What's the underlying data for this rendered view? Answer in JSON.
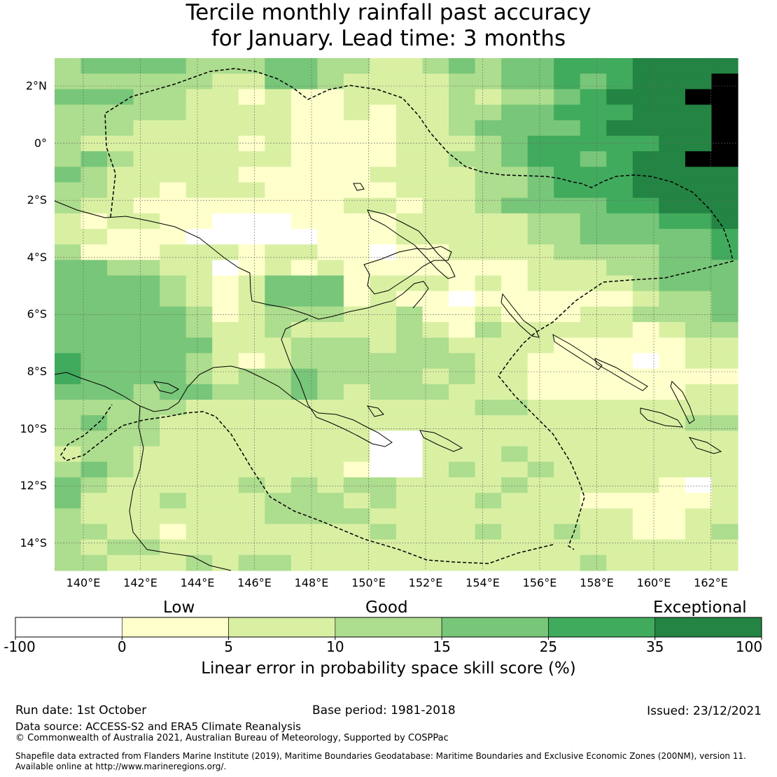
{
  "title_line_1": "Tercile monthly rainfall past accuracy",
  "title_line_2": "for January. Lead time: 3 months",
  "lat_labels": [
    "2°N",
    "0°",
    "2°S",
    "4°S",
    "6°S",
    "8°S",
    "10°S",
    "12°S",
    "14°S"
  ],
  "lon_labels": [
    "140°E",
    "142°E",
    "144°E",
    "146°E",
    "148°E",
    "150°E",
    "152°E",
    "154°E",
    "156°E",
    "158°E",
    "160°E",
    "162°E"
  ],
  "legend": {
    "categories": [
      "Low",
      "Good",
      "Exceptional"
    ],
    "ticks": [
      "-100",
      "0",
      "5",
      "10",
      "15",
      "25",
      "35",
      "100"
    ],
    "colors": [
      "#ffffff",
      "#ffffcc",
      "#d9f0a3",
      "#addd8e",
      "#78c679",
      "#41ab5d",
      "#238443"
    ],
    "caption": "Linear error in probability space skill score (%)"
  },
  "footer": {
    "run_date": "Run date: 1st October",
    "base_period": "Base period: 1981-2018",
    "issued": "Issued: 23/12/2021",
    "data_source": "Data source: ACCESS-S2 and ERA5 Climate Reanalysis",
    "copyright": "© Commonwealth of Australia 2021, Australian Bureau of Meteorology, Supported by COSPPac",
    "shapefile_line_1": "Shapefile data extracted from Flanders Marine Institute (2019), Maritime Boundaries Geodatabase: Maritime Boundaries and Exclusive Economic Zones (200NM), version 11.",
    "shapefile_line_2": "Available online at http://www.marineregions.org/."
  },
  "skill_grid": [
    "34444333443322343445556666",
    "33333322443222233445456667",
    "44433221211222232334566677",
    "33333222211212233445556667",
    "33322222211112234444566667",
    "32222221211112223455555667",
    "34322222211112233455456677",
    "43222221111122223345556666",
    "33221222111112223345556666",
    "32211111111221223444455666",
    "21221100011112222233444556",
    "22111000001112222233444445",
    "31112221221101122223333445",
    "44332201212111111122233444",
    "44443212444122212122223444",
    "44443212444121101111112334",
    "44444312333223112111223334",
    "44444322322223213222221233",
    "44444422233323322221111122",
    "54444321233333332211110122",
    "54444323343333232211111111",
    "44434433343233322211111122",
    "33333222222222223322222222",
    "34332222222222222222222233",
    "33332222222200222222222222",
    "23322222222200222322222222",
    "34322222222100232232222222",
    "43222223232332222322222102",
    "42223222333232223222111112",
    "32222222333322222222221122",
    "33221222222232223223221123",
    "32332222222222222222222222",
    "33222323322222222222322222"
  ]
}
